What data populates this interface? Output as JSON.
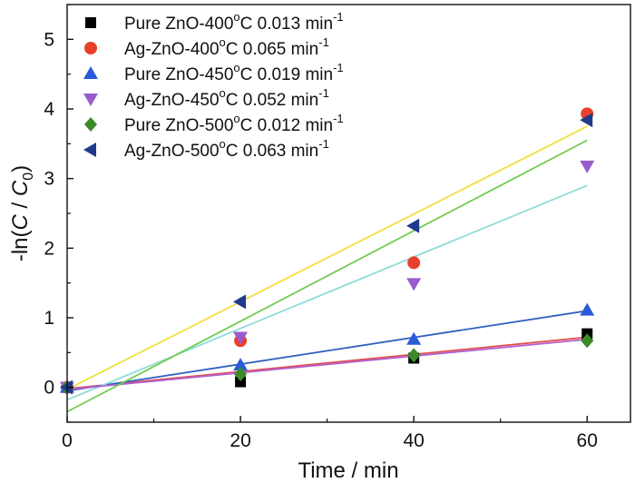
{
  "chart_data": {
    "type": "scatter",
    "xlabel": "Time / min",
    "ylabel": "-ln(C / C0)",
    "ylabel_parts": [
      "-ln(",
      "C",
      " / ",
      "C",
      "0",
      ")"
    ],
    "xlim": [
      0,
      65
    ],
    "ylim": [
      -0.5,
      5.5
    ],
    "x_ticks": [
      0,
      20,
      40,
      60
    ],
    "y_ticks": [
      0,
      1,
      2,
      3,
      4,
      5
    ],
    "x_tick_labels": [
      "0",
      "20",
      "40",
      "60"
    ],
    "y_tick_labels": [
      "0",
      "1",
      "2",
      "3",
      "4",
      "5"
    ],
    "x": [
      0,
      20,
      40,
      60
    ],
    "legend_placement": "top-left",
    "series": [
      {
        "name": "Pure ZnO-400°C 0.013 min-1",
        "legend_parts": [
          "Pure ZnO-400",
          "o",
          "C 0.013 min",
          "-1"
        ],
        "marker": "square",
        "color": "#000000",
        "values": [
          0,
          0.08,
          0.42,
          0.77
        ],
        "fit": [
          [
            0,
            -0.02
          ],
          [
            60,
            0.72
          ]
        ],
        "fit_color": "#e05050"
      },
      {
        "name": "Ag-ZnO-400°C 0.065 min-1",
        "legend_parts": [
          "Ag-ZnO-400",
          "o",
          "C 0.065 min",
          "-1"
        ],
        "marker": "circle",
        "color": "#e8402a",
        "values": [
          0,
          0.67,
          1.79,
          3.93
        ],
        "fit": [
          [
            0,
            -0.03
          ],
          [
            60,
            3.75
          ]
        ],
        "fit_color": "#f0e040"
      },
      {
        "name": "Pure ZnO-450°C 0.019 min-1",
        "legend_parts": [
          "Pure ZnO-450",
          "o",
          "C 0.019 min",
          "-1"
        ],
        "marker": "triangle-up",
        "color": "#2a5bd7",
        "values": [
          0,
          0.32,
          0.69,
          1.11
        ],
        "fit": [
          [
            0,
            -0.05
          ],
          [
            60,
            1.1
          ]
        ],
        "fit_color": "#3060c0"
      },
      {
        "name": "Ag-ZnO-450°C 0.052 min-1",
        "legend_parts": [
          "Ag-ZnO-450",
          "o",
          "C 0.052 min",
          "-1"
        ],
        "marker": "triangle-down",
        "color": "#9a5ccc",
        "values": [
          0,
          0.72,
          1.49,
          3.18
        ],
        "fit": [
          [
            0,
            -0.18
          ],
          [
            60,
            2.9
          ]
        ],
        "fit_color": "#90dcd8"
      },
      {
        "name": "Pure ZnO-500°C 0.012 min-1",
        "legend_parts": [
          "Pure ZnO-500",
          "o",
          "C 0.012 min",
          "-1"
        ],
        "marker": "diamond",
        "color": "#3a8a2a",
        "values": [
          0,
          0.19,
          0.46,
          0.67
        ],
        "fit": [
          [
            0,
            -0.03
          ],
          [
            60,
            0.69
          ]
        ],
        "fit_color": "#b060d0"
      },
      {
        "name": "Ag-ZnO-500°C 0.063 min-1",
        "legend_parts": [
          "Ag-ZnO-500",
          "o",
          "C 0.063 min",
          "-1"
        ],
        "marker": "triangle-left",
        "color": "#1e3a8a",
        "values": [
          0,
          1.23,
          2.32,
          3.84
        ],
        "fit": [
          [
            0,
            -0.35
          ],
          [
            60,
            3.55
          ]
        ],
        "fit_color": "#70cc50"
      }
    ]
  }
}
